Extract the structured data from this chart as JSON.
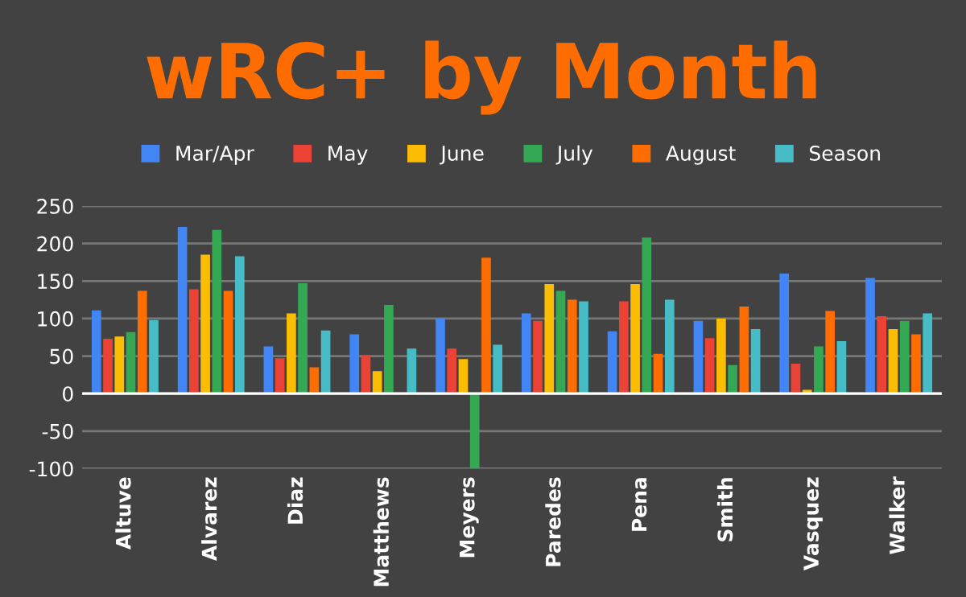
{
  "chart_data": {
    "type": "bar",
    "title": "wRC+ by Month",
    "categories": [
      "Altuve",
      "Alvarez",
      "Diaz",
      "Matthews",
      "Meyers",
      "Paredes",
      "Pena",
      "Smith",
      "Vasquez",
      "Walker"
    ],
    "series": [
      {
        "name": "Mar/Apr",
        "color": "#4285f4",
        "values": [
          111,
          222,
          63,
          79,
          100,
          107,
          83,
          97,
          160,
          154
        ]
      },
      {
        "name": "May",
        "color": "#ea4335",
        "values": [
          73,
          139,
          47,
          51,
          60,
          97,
          123,
          74,
          40,
          103
        ]
      },
      {
        "name": "June",
        "color": "#fbbc04",
        "values": [
          76,
          185,
          107,
          30,
          46,
          146,
          146,
          100,
          5,
          86
        ]
      },
      {
        "name": "July",
        "color": "#34a853",
        "values": [
          82,
          218,
          147,
          118,
          -100,
          137,
          208,
          38,
          63,
          97
        ]
      },
      {
        "name": "August",
        "color": "#ff6d01",
        "values": [
          137,
          137,
          35,
          null,
          181,
          125,
          53,
          116,
          110,
          79
        ]
      },
      {
        "name": "Season",
        "color": "#46bdc6",
        "values": [
          98,
          183,
          84,
          60,
          65,
          123,
          125,
          86,
          70,
          107
        ]
      }
    ],
    "ylim": [
      -100,
      250
    ],
    "yticks": [
      -100,
      -50,
      0,
      50,
      100,
      150,
      200,
      250
    ],
    "grid": "y",
    "legend": "top"
  }
}
